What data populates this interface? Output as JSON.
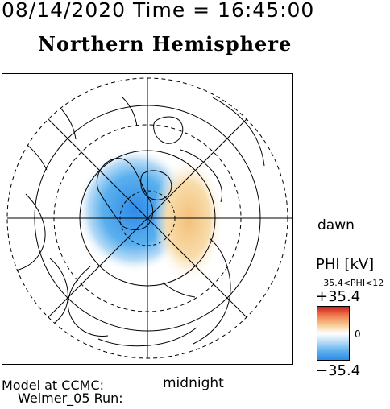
{
  "header": {
    "datetime": "08/14/2020 Time = 16:45:00",
    "hemisphere": "Northern Hemisphere"
  },
  "orientation_labels": {
    "dawn": "dawn",
    "midnight": "midnight"
  },
  "colorbar": {
    "title": "PHI [kV]",
    "range_text": "−35.4<PHI<12",
    "max_label": "+35.4",
    "zero_label": "0",
    "min_label": "−35.4",
    "positive_color": "#cc2020",
    "negative_color": "#2f8be8"
  },
  "footer": {
    "line1": "Model at CCMC:",
    "line2": "Weimer_05 Run:"
  },
  "chart_data": {
    "type": "heatmap",
    "projection": "polar (north pole centered)",
    "variable": "PHI",
    "units": "kV",
    "min_value": -35.4,
    "max_value": 35.4,
    "features": [
      {
        "name": "negative potential cell",
        "sign": "negative",
        "peak_value": -35.4,
        "color": "#2f8be8"
      },
      {
        "name": "positive potential cell",
        "sign": "positive",
        "peak_value": 12,
        "color": "#f0b070"
      }
    ]
  }
}
